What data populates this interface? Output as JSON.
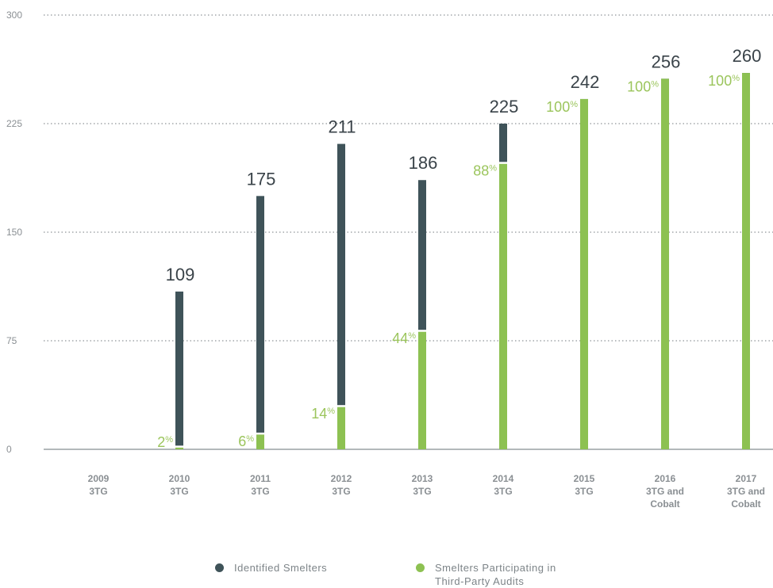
{
  "chart_data": {
    "type": "bar",
    "categories": [
      [
        "2009",
        "3TG"
      ],
      [
        "2010",
        "3TG"
      ],
      [
        "2011",
        "3TG"
      ],
      [
        "2012",
        "3TG"
      ],
      [
        "2013",
        "3TG"
      ],
      [
        "2014",
        "3TG"
      ],
      [
        "2015",
        "3TG"
      ],
      [
        "2016",
        "3TG and",
        "Cobalt"
      ],
      [
        "2017",
        "3TG and",
        "Cobalt"
      ]
    ],
    "series": [
      {
        "name": "Identified Smelters",
        "color": "#3f5359",
        "values": [
          null,
          109,
          175,
          211,
          186,
          225,
          242,
          256,
          260
        ]
      },
      {
        "name": "Smelters Participating in Third-Party Audits",
        "color": "#8dc152",
        "values": [
          null,
          2,
          11,
          30,
          82,
          198,
          242,
          256,
          260
        ]
      }
    ],
    "total_labels": [
      "",
      "109",
      "175",
      "211",
      "186",
      "225",
      "242",
      "256",
      "260"
    ],
    "percent_labels": [
      "",
      "2",
      "6",
      "14",
      "44",
      "88",
      "100",
      "100",
      "100"
    ],
    "percent_sign": "%",
    "y_ticks": [
      "0",
      "75",
      "150",
      "225",
      "300"
    ],
    "ylim": [
      0,
      300
    ],
    "grid": true,
    "legend_position": "bottom",
    "title": "",
    "xlabel": "",
    "ylabel": ""
  },
  "legend": {
    "identified": "Identified Smelters",
    "participating": "Smelters Participating in Third-Party Audits"
  }
}
